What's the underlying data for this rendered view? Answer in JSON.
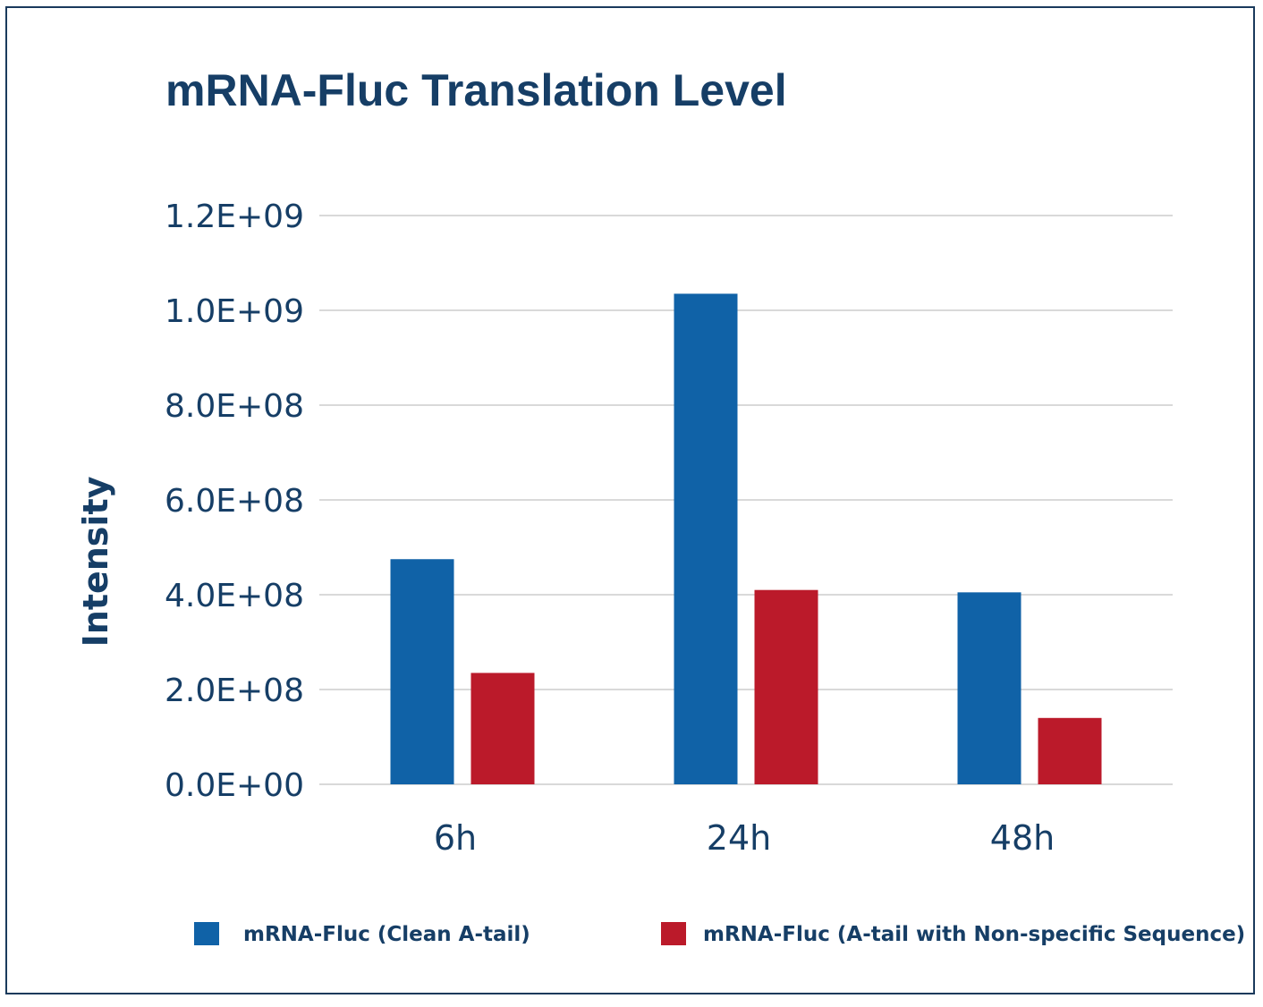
{
  "chart_data": {
    "type": "bar",
    "title": "mRNA-Fluc Translation Level",
    "ylabel": "Intensity",
    "xlabel": "",
    "categories": [
      "6h",
      "24h",
      "48h"
    ],
    "series": [
      {
        "name": "mRNA-Fluc (Clean A-tail)",
        "color": "#1062a7",
        "values": [
          475000000,
          1035000000,
          405000000
        ]
      },
      {
        "name": "mRNA-Fluc (A-tail with Non-specific Sequence)",
        "color": "#bb1a2a",
        "values": [
          235000000,
          410000000,
          140000000
        ]
      }
    ],
    "ylim": [
      0,
      1200000000
    ],
    "yticks": [
      {
        "value": 0,
        "label": "0.0E+00"
      },
      {
        "value": 200000000,
        "label": "2.0E+08"
      },
      {
        "value": 400000000,
        "label": "4.0E+08"
      },
      {
        "value": 600000000,
        "label": "6.0E+08"
      },
      {
        "value": 800000000,
        "label": "8.0E+08"
      },
      {
        "value": 1000000000,
        "label": "1.0E+09"
      },
      {
        "value": 1200000000,
        "label": "1.2E+09"
      }
    ],
    "grid": true,
    "legend_position": "bottom"
  }
}
